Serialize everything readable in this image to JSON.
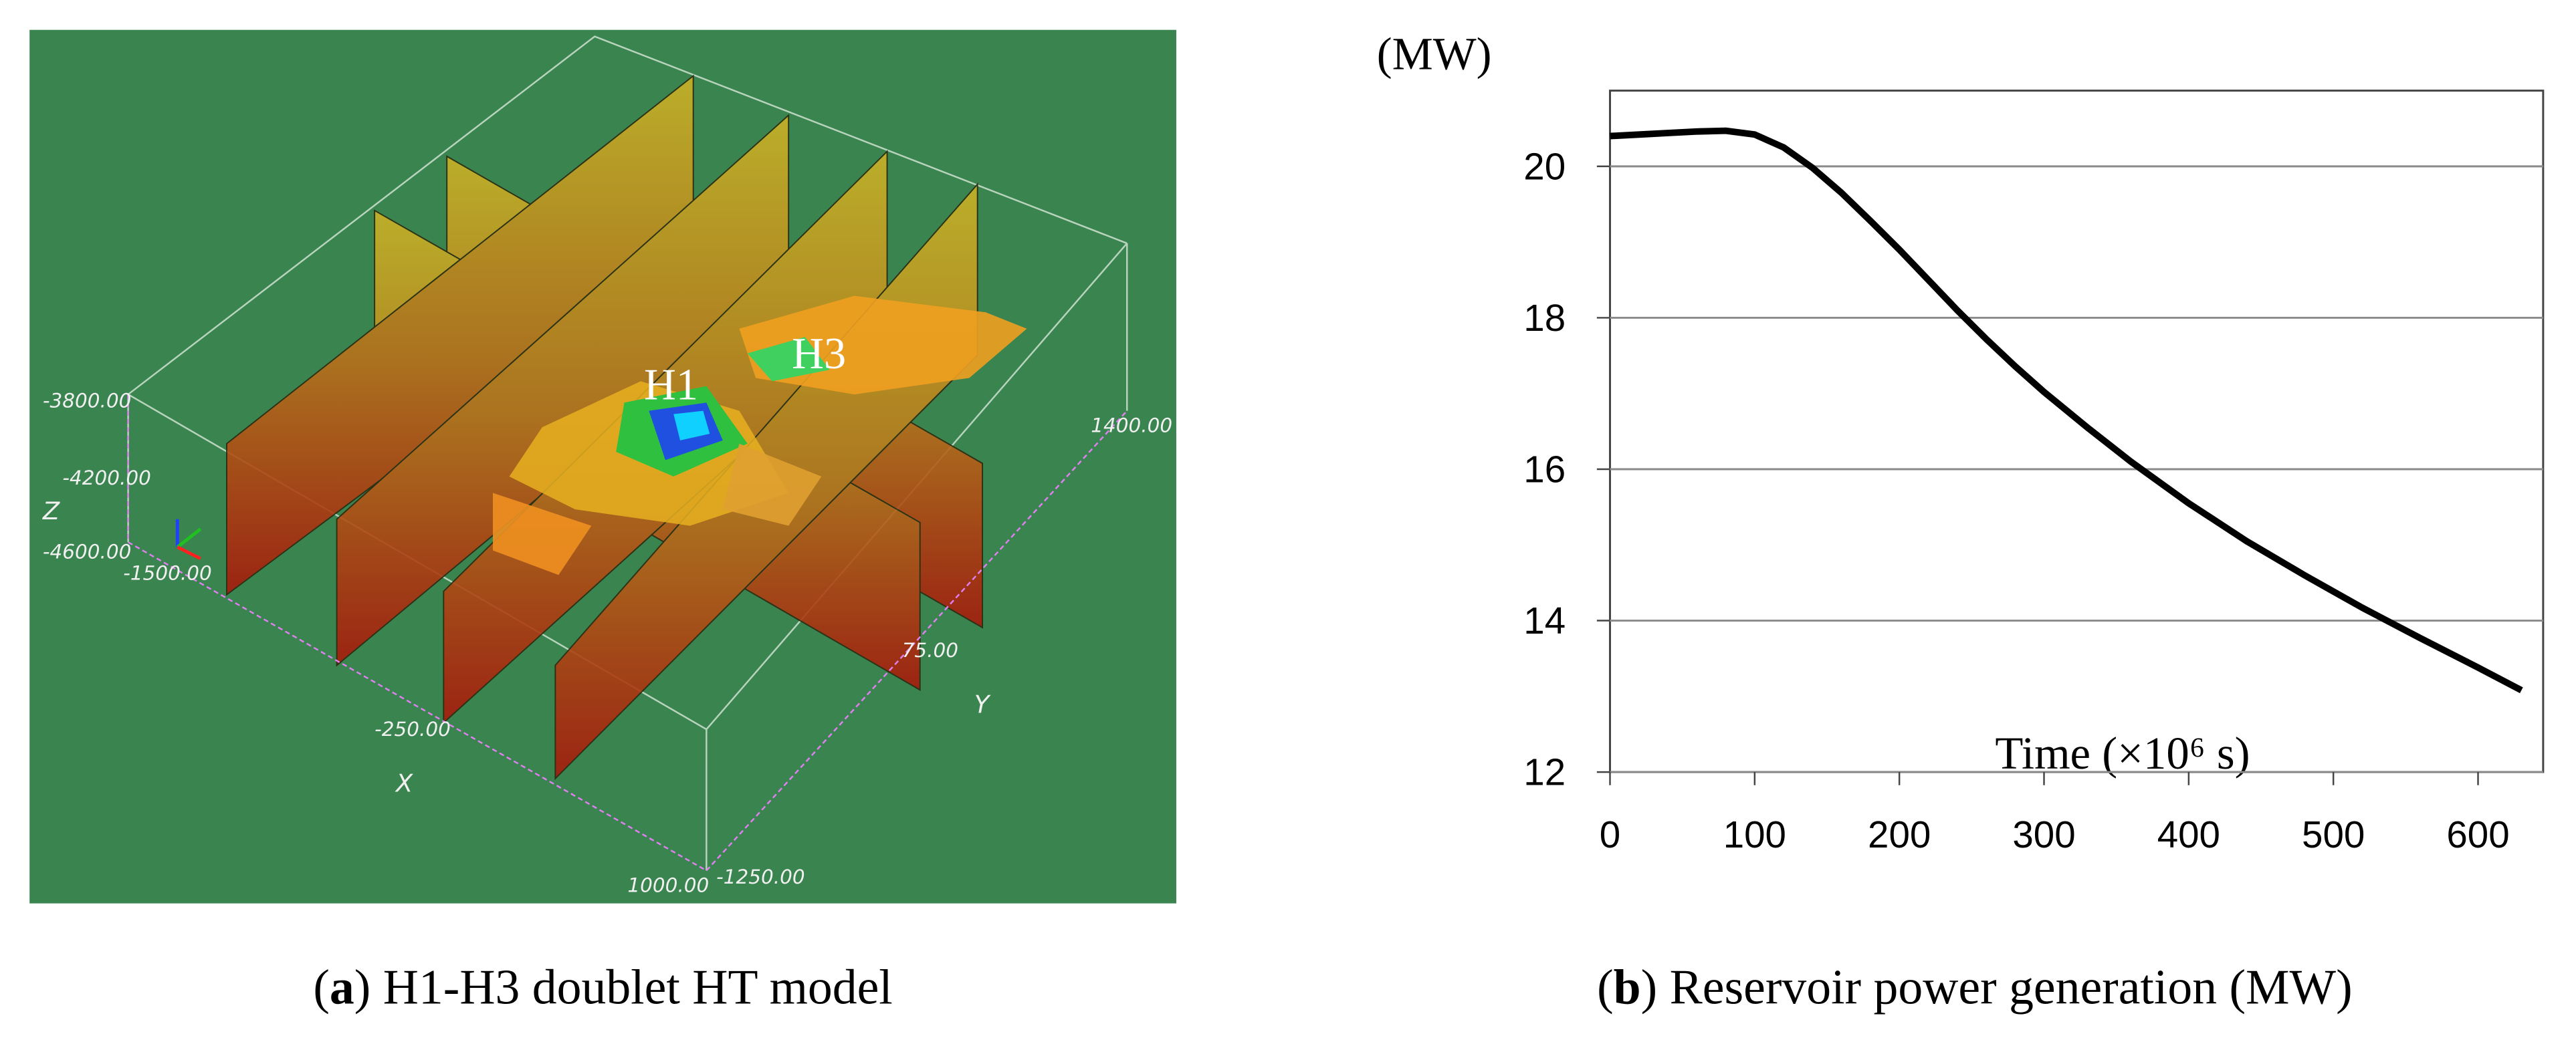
{
  "panel_a": {
    "z_ticks": [
      "-3800.00",
      "-4200.00",
      "-4600.00"
    ],
    "z_label": "Z",
    "x_ticks": [
      "-1500.00",
      "-250.00",
      "1000.00"
    ],
    "x_label": "X",
    "y_ticks": [
      "-1250.00",
      "75.00",
      "1400.00"
    ],
    "y_label": "Y",
    "wells": [
      "H1",
      "H3"
    ],
    "caption": {
      "prefix": "(",
      "label": "a",
      "text": ") H1-H3 doublet HT model"
    }
  },
  "chart_data": {
    "type": "line",
    "y_label": "(MW)",
    "x_label": "Time (×10⁶ s)",
    "color": "#000000",
    "grid": true,
    "x": [
      0,
      20,
      40,
      60,
      80,
      100,
      120,
      140,
      160,
      180,
      200,
      220,
      240,
      260,
      280,
      300,
      330,
      360,
      400,
      440,
      480,
      520,
      560,
      600,
      630
    ],
    "values": [
      20.4,
      20.42,
      20.44,
      20.46,
      20.47,
      20.42,
      20.25,
      19.98,
      19.65,
      19.28,
      18.9,
      18.5,
      18.1,
      17.72,
      17.36,
      17.02,
      16.55,
      16.1,
      15.55,
      15.05,
      14.6,
      14.17,
      13.77,
      13.38,
      13.08
    ],
    "xlim": [
      0,
      645
    ],
    "ylim": [
      12,
      21
    ],
    "xticks": [
      0,
      100,
      200,
      300,
      400,
      500,
      600
    ],
    "yticks": [
      12,
      14,
      16,
      18,
      20
    ],
    "caption": {
      "prefix": "(",
      "label": "b",
      "text": ") Reservoir power generation (MW)"
    }
  }
}
